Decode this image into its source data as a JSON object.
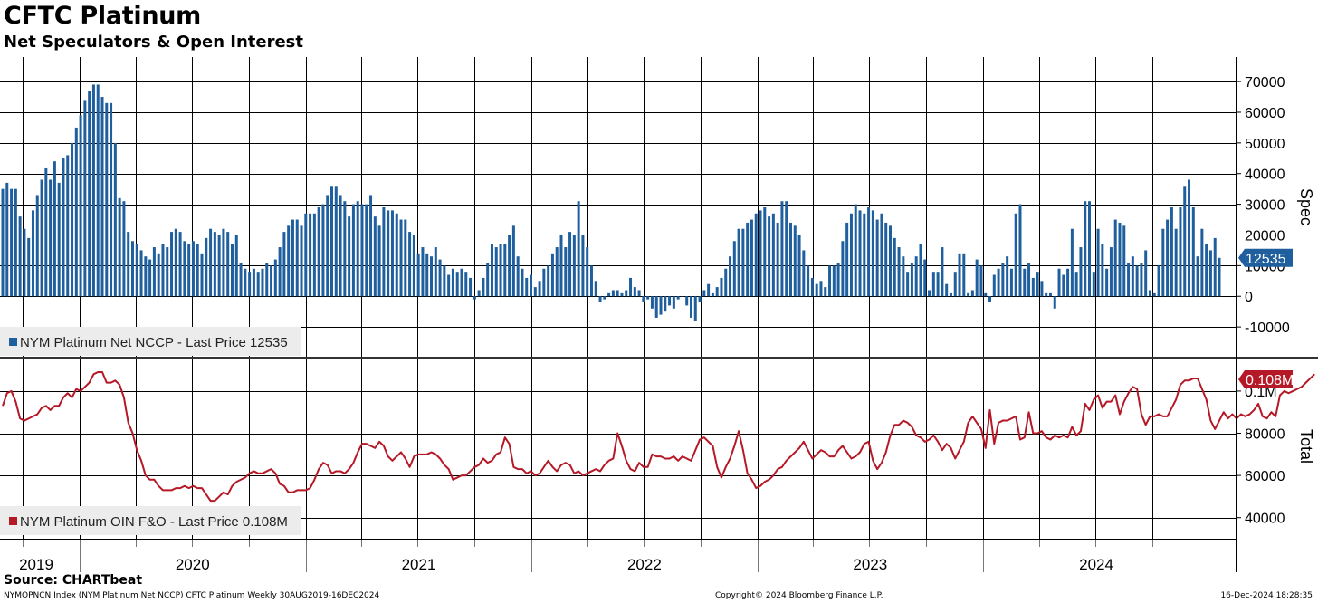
{
  "header": {
    "title": "CFTC Platinum",
    "subtitle": "Net Speculators & Open Interest"
  },
  "footer": {
    "source": "Source: CHARTbeat",
    "left": "NYMOPNCN Index (NYM Platinum Net NCCP) CFTC Platinum  Weekly 30AUG2019-16DEC2024",
    "center": "Copyright© 2024 Bloomberg Finance L.P.",
    "right": "16-Dec-2024 18:28:35"
  },
  "colors": {
    "spec": "#1f5f9e",
    "total": "#b51826",
    "grid": "#000000",
    "legend_bg": "#ececec"
  },
  "chart_data": [
    {
      "type": "bar",
      "ylabel": "Spec",
      "ylim": [
        -20000,
        78000
      ],
      "yticks": [
        70000,
        60000,
        50000,
        40000,
        30000,
        20000,
        10000,
        0,
        -10000
      ],
      "ytick_labels": [
        "70000",
        "60000",
        "50000",
        "40000",
        "30000",
        "20000",
        "10000",
        "0",
        "-10000"
      ],
      "legend": "NYM Platinum Net NCCP - Last Price 12535",
      "last_label": "12535",
      "last_value": 12535,
      "x_start": "2019-08-30",
      "interval_days": 7,
      "series": [
        {
          "values": [
            35000,
            37000,
            35000,
            35000,
            26000,
            22000,
            19000,
            28000,
            33000,
            38000,
            42000,
            38000,
            44000,
            37000,
            45000,
            46000,
            50000,
            55000,
            59000,
            64000,
            67000,
            69000,
            69000,
            65000,
            63000,
            63000,
            50000,
            32000,
            31000,
            21000,
            18000,
            17000,
            15000,
            13000,
            12000,
            16000,
            14000,
            17000,
            16000,
            21000,
            22000,
            21000,
            18000,
            17000,
            18000,
            17000,
            14000,
            19000,
            22000,
            21000,
            20000,
            22000,
            21000,
            17000,
            20000,
            11000,
            9000,
            8000,
            9000,
            8000,
            9000,
            11000,
            10000,
            12000,
            16000,
            21000,
            23000,
            25000,
            25000,
            23000,
            27000,
            27000,
            27000,
            29000,
            30000,
            33000,
            36000,
            36000,
            33000,
            31000,
            26000,
            30000,
            31000,
            30000,
            30000,
            33000,
            26000,
            23000,
            29000,
            28000,
            28000,
            27000,
            25000,
            25000,
            21000,
            20000,
            14000,
            16000,
            14000,
            13000,
            16000,
            12000,
            10000,
            7000,
            9000,
            8000,
            9000,
            8000,
            6000,
            -1000,
            2000,
            6000,
            11000,
            17000,
            16000,
            17000,
            17000,
            20000,
            23000,
            13000,
            9000,
            6000,
            7000,
            3000,
            5000,
            9000,
            10000,
            14000,
            16000,
            20000,
            16000,
            21000,
            20000,
            31000,
            20000,
            16000,
            10000,
            5000,
            -2000,
            -1000,
            1000,
            2000,
            2000,
            1000,
            2000,
            6000,
            3000,
            2000,
            -2000,
            -1000,
            -4000,
            -7000,
            -6000,
            -5000,
            -3000,
            -4000,
            -1000,
            0,
            -3000,
            -7000,
            -8000,
            -2000,
            2000,
            4000,
            1000,
            3000,
            6000,
            9000,
            13000,
            18000,
            22000,
            22000,
            24000,
            25000,
            27000,
            28000,
            29000,
            26000,
            27000,
            24000,
            31000,
            31000,
            24000,
            23000,
            20000,
            15000,
            10000,
            6000,
            4000,
            5000,
            3000,
            10000,
            10000,
            11000,
            18000,
            24000,
            27000,
            30000,
            28000,
            27000,
            29000,
            28000,
            25000,
            27000,
            24000,
            23000,
            19000,
            16000,
            13000,
            8000,
            11000,
            13000,
            17000,
            12000,
            2000,
            8000,
            8000,
            16000,
            4000,
            1000,
            8000,
            14000,
            14000,
            1000,
            2000,
            12000,
            10000,
            1000,
            -2000,
            7000,
            9000,
            11000,
            13000,
            9000,
            27000,
            30000,
            9000,
            11000,
            6000,
            8000,
            5000,
            1000,
            1000,
            -4000,
            9000,
            7000,
            9000,
            22000,
            8000,
            16000,
            31000,
            31000,
            8000,
            22000,
            17000,
            9000,
            16000,
            25000,
            24000,
            23000,
            11000,
            13000,
            10000,
            11000,
            15000,
            2000,
            1000,
            10000,
            22000,
            25000,
            29000,
            22000,
            29000,
            36000,
            38000,
            29000,
            13000,
            22000,
            17000,
            15000,
            19000,
            12535
          ]
        }
      ]
    },
    {
      "type": "line",
      "ylabel": "Total",
      "ylim": [
        30000,
        115000
      ],
      "yticks": [
        100000,
        80000,
        60000,
        40000
      ],
      "ytick_labels": [
        "0.1M",
        "80000",
        "60000",
        "40000"
      ],
      "legend": "NYM Platinum OIN F&O - Last Price 0.108M",
      "last_label": "0.108M",
      "last_value": 108000,
      "x_start": "2019-08-30",
      "interval_days": 7,
      "series": [
        {
          "values": [
            93000,
            99000,
            100000,
            95000,
            87000,
            86000,
            87000,
            88000,
            89000,
            92000,
            93000,
            91000,
            93000,
            93000,
            97000,
            99000,
            97000,
            101000,
            100000,
            102000,
            104000,
            108000,
            109000,
            109000,
            104000,
            104000,
            105000,
            103000,
            97000,
            85000,
            80000,
            72000,
            67000,
            60000,
            58000,
            58000,
            55000,
            53000,
            53000,
            53000,
            54000,
            54000,
            55000,
            54000,
            55000,
            54000,
            54000,
            51000,
            48000,
            48000,
            50000,
            52000,
            51000,
            55000,
            57000,
            58000,
            59000,
            61000,
            62000,
            61000,
            61000,
            62000,
            63000,
            61000,
            56000,
            55000,
            52000,
            52000,
            53000,
            53000,
            53000,
            54000,
            58000,
            63000,
            66000,
            65000,
            61000,
            62000,
            62000,
            61000,
            63000,
            66000,
            71000,
            75000,
            75000,
            74000,
            73000,
            76000,
            74000,
            69000,
            67000,
            69000,
            71000,
            68000,
            64000,
            69000,
            70000,
            70000,
            70000,
            71000,
            70000,
            68000,
            65000,
            63000,
            58000,
            59000,
            60000,
            60000,
            62000,
            64000,
            65000,
            68000,
            66000,
            67000,
            70000,
            71000,
            78000,
            75000,
            64000,
            63000,
            63000,
            61000,
            62000,
            60000,
            61000,
            64000,
            67000,
            64000,
            62000,
            65000,
            66000,
            65000,
            61000,
            62000,
            60000,
            61000,
            62000,
            63000,
            62000,
            65000,
            67000,
            68000,
            80000,
            74000,
            67000,
            63000,
            62000,
            66000,
            64000,
            64000,
            70000,
            69000,
            69000,
            68000,
            68000,
            69000,
            67000,
            69000,
            68000,
            67000,
            72000,
            77000,
            78000,
            76000,
            74000,
            64000,
            59000,
            64000,
            68000,
            74000,
            81000,
            72000,
            61000,
            58000,
            54000,
            55000,
            57000,
            58000,
            60000,
            63000,
            64000,
            67000,
            69000,
            71000,
            73000,
            76000,
            72000,
            68000,
            70000,
            72000,
            71000,
            69000,
            69000,
            72000,
            74000,
            71000,
            68000,
            69000,
            71000,
            75000,
            76000,
            67000,
            63000,
            66000,
            71000,
            79000,
            84000,
            84000,
            86000,
            85000,
            83000,
            79000,
            78000,
            76000,
            77000,
            79000,
            76000,
            72000,
            75000,
            73000,
            68000,
            72000,
            76000,
            85000,
            88000,
            85000,
            82000,
            73000,
            91000,
            75000,
            85000,
            86000,
            86000,
            87000,
            88000,
            77000,
            78000,
            90000,
            80000,
            80000,
            81000,
            78000,
            77000,
            79000,
            78000,
            79000,
            78000,
            83000,
            79000,
            81000,
            94000,
            91000,
            96000,
            98000,
            92000,
            95000,
            95000,
            98000,
            89000,
            95000,
            99000,
            102000,
            101000,
            89000,
            84000,
            88000,
            88000,
            89000,
            88000,
            88000,
            92000,
            96000,
            103000,
            105000,
            105000,
            106000,
            106000,
            101000,
            96000,
            86000,
            82000,
            86000,
            90000,
            87000,
            89000,
            87000,
            89000,
            88000,
            89000,
            91000,
            94000,
            88000,
            87000,
            90000,
            88000,
            98000,
            100000,
            99000,
            100000,
            101000,
            102000,
            104000,
            106000,
            108000
          ]
        }
      ]
    }
  ],
  "x_axis": {
    "year_labels": [
      "2019",
      "2020",
      "2021",
      "2022",
      "2023",
      "2024"
    ]
  }
}
